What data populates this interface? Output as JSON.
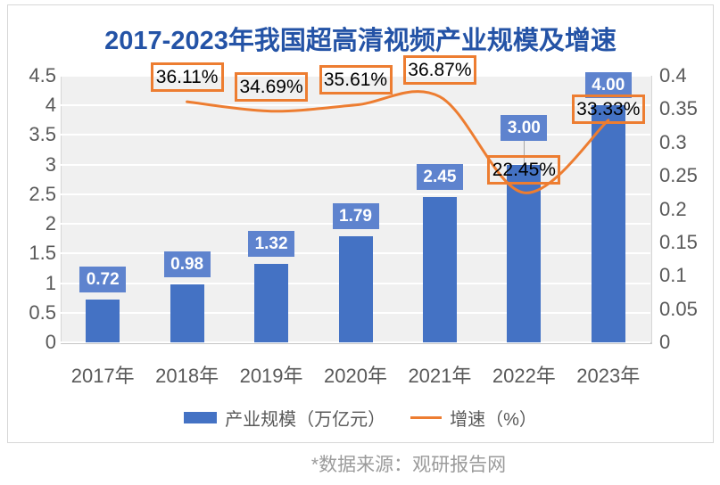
{
  "page": {
    "title": "2017-2023年我国超高清视频产业规模及增速",
    "source_note": "*数据来源：观研报告网"
  },
  "colors": {
    "title": "#2453a6",
    "bar": "#4472c4",
    "bar_label_box": "#5e83ce",
    "line": "#ed7d31",
    "axis_text": "#595959",
    "plot_background": "#f0f0f0"
  },
  "chart_data": {
    "type": "bar",
    "subtype": "combo-bar-line",
    "title": "2017-2023年我国超高清视频产业规模及增速",
    "categories": [
      "2017年",
      "2018年",
      "2019年",
      "2020年",
      "2021年",
      "2022年",
      "2023年"
    ],
    "series": [
      {
        "name": "产业规模（万亿元）",
        "type": "bar",
        "axis": "left",
        "color": "#4472c4",
        "values": [
          0.72,
          0.98,
          1.32,
          1.79,
          2.45,
          3.0,
          4.0
        ],
        "labels": [
          "0.72",
          "0.98",
          "1.32",
          "1.79",
          "2.45",
          "3.00",
          "4.00"
        ]
      },
      {
        "name": "增速（%）",
        "type": "line",
        "axis": "right",
        "color": "#ed7d31",
        "smooth": true,
        "values": [
          null,
          0.3611,
          0.3469,
          0.3561,
          0.3687,
          0.2245,
          0.3333
        ],
        "labels": [
          null,
          "36.11%",
          "34.69%",
          "35.61%",
          "36.87%",
          "22.45%",
          "33.33%"
        ]
      }
    ],
    "left_axis": {
      "min": 0,
      "max": 4.5,
      "step": 0.5,
      "ticks": [
        "0",
        "0.5",
        "1",
        "1.5",
        "2",
        "2.5",
        "3",
        "3.5",
        "4",
        "4.5"
      ]
    },
    "right_axis": {
      "min": 0,
      "max": 0.4,
      "step": 0.05,
      "ticks": [
        "0",
        "0.05",
        "0.1",
        "0.15",
        "0.2",
        "0.25",
        "0.3",
        "0.35",
        "0.4"
      ]
    },
    "grid": true,
    "legend_position": "bottom",
    "legend": [
      {
        "label": "产业规模（万亿元）",
        "swatch": "bar",
        "color": "#4472c4"
      },
      {
        "label": "增速（%）",
        "swatch": "line",
        "color": "#ed7d31"
      }
    ]
  }
}
